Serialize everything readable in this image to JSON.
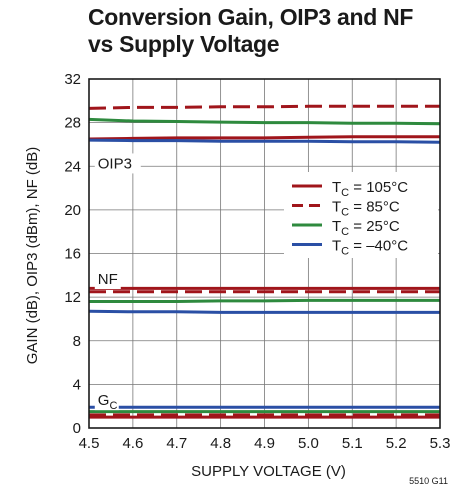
{
  "chart_data": {
    "type": "line",
    "title": [
      "Conversion Gain, OIP3 and NF",
      "vs Supply Voltage"
    ],
    "xlabel": "SUPPLY VOLTAGE (V)",
    "ylabel": "GAIN (dB), OIP3 (dBm), NF (dB)",
    "xlim": [
      4.5,
      5.3
    ],
    "ylim": [
      0,
      32
    ],
    "x_ticks": [
      "4.5",
      "4.6",
      "4.7",
      "4.8",
      "4.9",
      "5.0",
      "5.1",
      "5.2",
      "5.3"
    ],
    "y_ticks": [
      "0",
      "4",
      "8",
      "12",
      "16",
      "20",
      "24",
      "28",
      "32"
    ],
    "grid": true,
    "colors": {
      "105C": "#a0151b",
      "85C": "#a0151b",
      "25C": "#2e8a3e",
      "-40C": "#2a4fa5",
      "grid": "#777777",
      "frame": "#1a1a1a"
    },
    "legend": {
      "placement": "right",
      "entries": [
        {
          "series": "105C",
          "t": "T",
          "sub": "C",
          "rest": " = 105°C",
          "style": "solid"
        },
        {
          "series": "85C",
          "t": "T",
          "sub": "C",
          "rest": " = 85°C",
          "style": "dashed"
        },
        {
          "series": "25C",
          "t": "T",
          "sub": "C",
          "rest": " = 25°C",
          "style": "solid"
        },
        {
          "series": "-40C",
          "t": "T",
          "sub": "C",
          "rest": " = –40°C",
          "style": "solid"
        }
      ]
    },
    "annotations": [
      {
        "text": "OIP3",
        "x": 4.52,
        "y": 23.8
      },
      {
        "text": "NF",
        "x": 4.52,
        "y": 13.2
      },
      {
        "text": "G",
        "sub": "C",
        "x": 4.52,
        "y": 2.1
      }
    ],
    "x": [
      4.5,
      4.6,
      4.7,
      4.8,
      4.9,
      5.0,
      5.1,
      5.2,
      5.3
    ],
    "series": [
      {
        "group": "OIP3",
        "series": "105C",
        "values": [
          26.5,
          26.55,
          26.6,
          26.6,
          26.6,
          26.65,
          26.7,
          26.7,
          26.7
        ]
      },
      {
        "group": "OIP3",
        "series": "85C",
        "values": [
          29.3,
          29.4,
          29.4,
          29.45,
          29.45,
          29.5,
          29.5,
          29.5,
          29.5
        ]
      },
      {
        "group": "OIP3",
        "series": "25C",
        "values": [
          28.3,
          28.15,
          28.1,
          28.05,
          28.0,
          28.0,
          27.95,
          27.95,
          27.9
        ]
      },
      {
        "group": "OIP3",
        "series": "-40C",
        "values": [
          26.4,
          26.35,
          26.35,
          26.3,
          26.3,
          26.3,
          26.25,
          26.25,
          26.2
        ]
      },
      {
        "group": "NF",
        "series": "105C",
        "values": [
          12.8,
          12.8,
          12.8,
          12.8,
          12.8,
          12.8,
          12.8,
          12.8,
          12.8
        ]
      },
      {
        "group": "NF",
        "series": "85C",
        "values": [
          12.5,
          12.5,
          12.5,
          12.5,
          12.5,
          12.5,
          12.5,
          12.5,
          12.5
        ]
      },
      {
        "group": "NF",
        "series": "25C",
        "values": [
          11.6,
          11.6,
          11.6,
          11.65,
          11.65,
          11.7,
          11.7,
          11.7,
          11.7
        ]
      },
      {
        "group": "NF",
        "series": "-40C",
        "values": [
          10.7,
          10.65,
          10.65,
          10.6,
          10.6,
          10.6,
          10.6,
          10.6,
          10.6
        ]
      },
      {
        "group": "GC",
        "series": "105C",
        "values": [
          1.0,
          1.0,
          1.0,
          1.0,
          1.0,
          1.0,
          1.0,
          1.0,
          1.0
        ]
      },
      {
        "group": "GC",
        "series": "85C",
        "values": [
          1.2,
          1.2,
          1.2,
          1.2,
          1.2,
          1.2,
          1.2,
          1.2,
          1.2
        ]
      },
      {
        "group": "GC",
        "series": "25C",
        "values": [
          1.5,
          1.5,
          1.5,
          1.5,
          1.5,
          1.5,
          1.5,
          1.5,
          1.5
        ]
      },
      {
        "group": "GC",
        "series": "-40C",
        "values": [
          1.9,
          1.9,
          1.9,
          1.9,
          1.9,
          1.9,
          1.9,
          1.9,
          1.9
        ]
      }
    ],
    "figure_code": "5510 G11"
  }
}
